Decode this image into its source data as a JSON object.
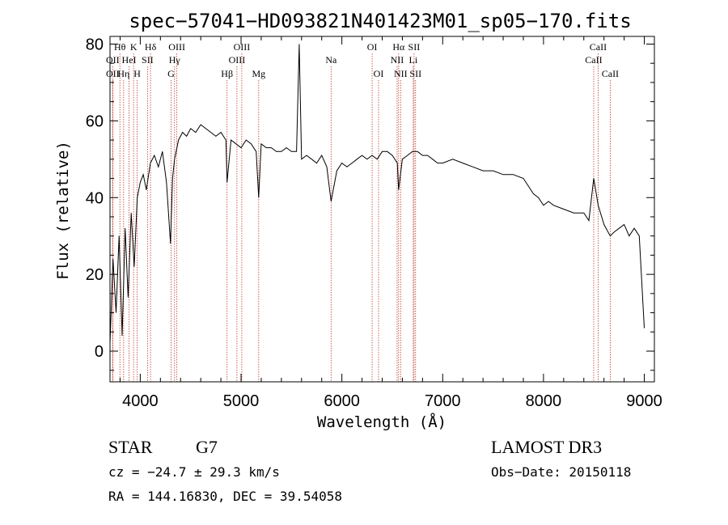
{
  "chart_data": {
    "type": "line",
    "title": "spec−57041−HD093821N401423M01_sp05−170.fits",
    "xlabel": "Wavelength (Å)",
    "ylabel": "Flux (relative)",
    "xlim": [
      3700,
      9100
    ],
    "ylim": [
      -8,
      82
    ],
    "xticks": [
      4000,
      5000,
      6000,
      7000,
      8000,
      9000
    ],
    "yticks": [
      0,
      20,
      40,
      60,
      80
    ],
    "series": [
      {
        "x": [
          3700,
          3730,
          3760,
          3790,
          3820,
          3850,
          3880,
          3910,
          3940,
          3970,
          4000,
          4030,
          4060,
          4100,
          4140,
          4180,
          4220,
          4260,
          4300,
          4320,
          4340,
          4380,
          4420,
          4460,
          4500,
          4550,
          4600,
          4650,
          4700,
          4750,
          4800,
          4850,
          4861,
          4900,
          4950,
          5000,
          5050,
          5100,
          5150,
          5175,
          5200,
          5250,
          5300,
          5350,
          5400,
          5450,
          5500,
          5550,
          5577,
          5600,
          5650,
          5700,
          5750,
          5800,
          5850,
          5893,
          5950,
          6000,
          6050,
          6100,
          6150,
          6200,
          6250,
          6300,
          6350,
          6400,
          6450,
          6500,
          6550,
          6563,
          6600,
          6650,
          6700,
          6750,
          6800,
          6850,
          6900,
          6950,
          7000,
          7100,
          7200,
          7300,
          7400,
          7500,
          7600,
          7700,
          7800,
          7850,
          7900,
          7950,
          8000,
          8050,
          8100,
          8200,
          8300,
          8400,
          8450,
          8498,
          8542,
          8600,
          8662,
          8700,
          8750,
          8800,
          8850,
          8900,
          8950,
          9000
        ],
        "y": [
          2,
          24,
          10,
          30,
          4,
          32,
          14,
          36,
          22,
          40,
          44,
          46,
          42,
          49,
          51,
          48,
          52,
          44,
          28,
          45,
          50,
          55,
          57,
          56,
          58,
          57,
          59,
          58,
          57,
          56,
          57,
          55,
          44,
          55,
          54,
          53,
          55,
          54,
          52,
          40,
          54,
          53,
          53,
          52,
          52,
          53,
          52,
          52,
          80,
          50,
          51,
          50,
          49,
          51,
          48,
          39,
          47,
          49,
          48,
          49,
          50,
          51,
          50,
          51,
          50,
          52,
          52,
          51,
          49,
          42,
          50,
          51,
          52,
          52,
          51,
          51,
          50,
          49,
          49,
          50,
          49,
          48,
          47,
          47,
          46,
          46,
          45,
          43,
          41,
          40,
          38,
          39,
          38,
          37,
          36,
          36,
          34,
          45,
          38,
          33,
          30,
          31,
          32,
          33,
          30,
          32,
          30,
          6
        ]
      }
    ],
    "spectral_lines": [
      {
        "label": "Hθ",
        "wavelength": 3798,
        "row": 1
      },
      {
        "label": "OII",
        "wavelength": 3727,
        "row": 2
      },
      {
        "label": "OII",
        "wavelength": 3727,
        "row": 3
      },
      {
        "label": "Hη",
        "wavelength": 3835,
        "row": 3
      },
      {
        "label": "HeI",
        "wavelength": 3889,
        "row": 2
      },
      {
        "label": "K",
        "wavelength": 3934,
        "row": 1
      },
      {
        "label": "SII",
        "wavelength": 4072,
        "row": 2
      },
      {
        "label": "H",
        "wavelength": 3969,
        "row": 3
      },
      {
        "label": "Hδ",
        "wavelength": 4102,
        "row": 1
      },
      {
        "label": "OIII",
        "wavelength": 4363,
        "row": 1
      },
      {
        "label": "Hγ",
        "wavelength": 4340,
        "row": 2
      },
      {
        "label": "G",
        "wavelength": 4305,
        "row": 3
      },
      {
        "label": "Hβ",
        "wavelength": 4861,
        "row": 3
      },
      {
        "label": "OIII",
        "wavelength": 4959,
        "row": 2
      },
      {
        "label": "OIII",
        "wavelength": 5007,
        "row": 1
      },
      {
        "label": "Mg",
        "wavelength": 5175,
        "row": 3
      },
      {
        "label": "Na",
        "wavelength": 5893,
        "row": 2
      },
      {
        "label": "OI",
        "wavelength": 6300,
        "row": 1
      },
      {
        "label": "OI",
        "wavelength": 6364,
        "row": 3
      },
      {
        "label": "Hα",
        "wavelength": 6563,
        "row": 1
      },
      {
        "label": "NII",
        "wavelength": 6548,
        "row": 2
      },
      {
        "label": "NII",
        "wavelength": 6583,
        "row": 3
      },
      {
        "label": "SII",
        "wavelength": 6716,
        "row": 1
      },
      {
        "label": "Li",
        "wavelength": 6708,
        "row": 2
      },
      {
        "label": "SII",
        "wavelength": 6731,
        "row": 3
      },
      {
        "label": "CaII",
        "wavelength": 8542,
        "row": 1
      },
      {
        "label": "CaII",
        "wavelength": 8498,
        "row": 2
      },
      {
        "label": "CaII",
        "wavelength": 8662,
        "row": 3
      }
    ]
  },
  "info": {
    "object_class": "STAR",
    "subclass": "G7",
    "survey": "LAMOST DR3",
    "redshift": "cz = −24.7 ± 29.3 km/s",
    "obs_date": "Obs−Date: 20150118",
    "coords": "RA = 144.16830, DEC =  39.54058"
  }
}
